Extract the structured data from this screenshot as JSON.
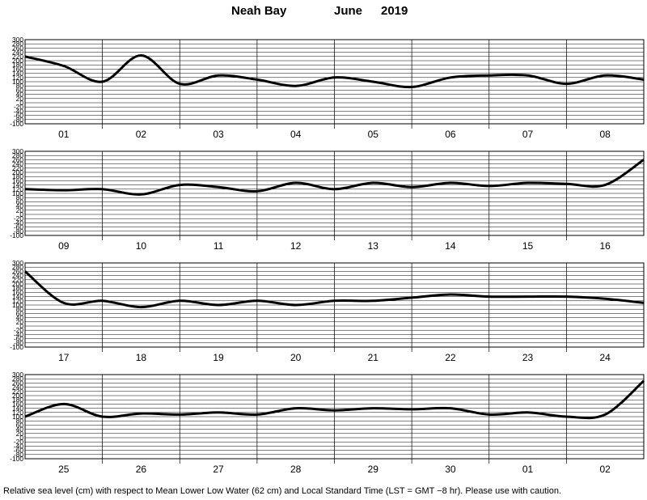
{
  "header": {
    "location": "Neah Bay",
    "month": "June",
    "year": "2019"
  },
  "footer": {
    "note": "Relative sea level (cm) with respect to Mean Lower Low Water (62 cm) and Local Standard Time (LST = GMT −8 hr). Please use with caution."
  },
  "chart_data": {
    "type": "line",
    "title": "Neah Bay June 2019",
    "ylabel": "Relative sea level (cm)",
    "ylim": [
      -100,
      300
    ],
    "yticks": [
      300,
      280,
      260,
      240,
      220,
      200,
      180,
      160,
      140,
      120,
      100,
      80,
      60,
      40,
      20,
      0,
      -20,
      -40,
      -60,
      -80,
      -100
    ],
    "grid": true,
    "panels": [
      {
        "days": [
          "01",
          "02",
          "03",
          "04",
          "05",
          "06",
          "07",
          "08"
        ],
        "x": [
          0,
          0.5,
          1,
          1.5,
          2,
          2.5,
          3,
          3.5,
          4,
          4.5,
          5,
          5.5,
          6,
          6.5,
          7,
          7.5,
          8
        ],
        "y": [
          220,
          175,
          100,
          225,
          90,
          130,
          110,
          80,
          120,
          100,
          75,
          120,
          130,
          130,
          90,
          130,
          110
        ]
      },
      {
        "days": [
          "09",
          "10",
          "11",
          "12",
          "13",
          "14",
          "15",
          "16"
        ],
        "x": [
          0,
          0.5,
          1,
          1.5,
          2,
          2.5,
          3,
          3.5,
          4,
          4.5,
          5,
          5.5,
          6,
          6.5,
          7,
          7.5,
          8
        ],
        "y": [
          120,
          115,
          120,
          95,
          140,
          130,
          110,
          150,
          120,
          150,
          130,
          150,
          135,
          150,
          145,
          140,
          260
        ]
      },
      {
        "days": [
          "17",
          "18",
          "19",
          "20",
          "21",
          "22",
          "23",
          "24"
        ],
        "x": [
          0,
          0.5,
          1,
          1.5,
          2,
          2.5,
          3,
          3.5,
          4,
          4.5,
          5,
          5.5,
          6,
          6.5,
          7,
          7.5,
          8
        ],
        "y": [
          260,
          110,
          120,
          90,
          120,
          100,
          120,
          100,
          120,
          120,
          135,
          150,
          140,
          140,
          140,
          130,
          110
        ]
      },
      {
        "days": [
          "25",
          "26",
          "27",
          "28",
          "29",
          "30",
          "01",
          "02"
        ],
        "x": [
          0,
          0.5,
          1,
          1.5,
          2,
          2.5,
          3,
          3.5,
          4,
          4.5,
          5,
          5.5,
          6,
          6.5,
          7,
          7.5,
          8
        ],
        "y": [
          100,
          160,
          100,
          115,
          110,
          120,
          110,
          140,
          130,
          140,
          135,
          140,
          110,
          120,
          100,
          110,
          270
        ]
      }
    ]
  }
}
